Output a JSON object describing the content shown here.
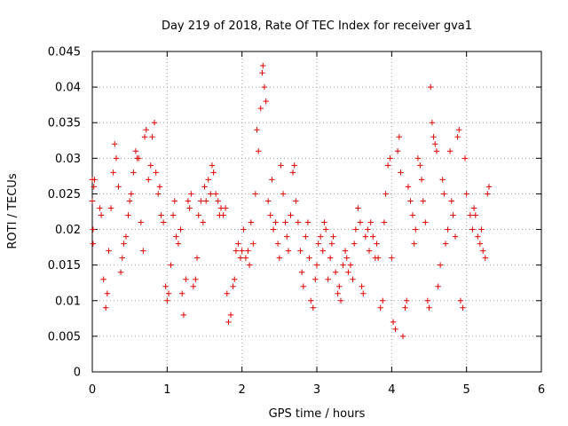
{
  "chart_data": {
    "type": "scatter",
    "title": "Day 219 of 2018, Rate Of TEC Index for receiver gva1",
    "xlabel": "GPS time / hours",
    "ylabel": "ROTI / TECUs",
    "xlim": [
      0,
      6
    ],
    "ylim": [
      0,
      0.045
    ],
    "x_ticks": [
      "0",
      "1",
      "2",
      "3",
      "4",
      "5",
      "6"
    ],
    "y_ticks": [
      "0",
      "0.005",
      "0.01",
      "0.015",
      "0.02",
      "0.025",
      "0.03",
      "0.035",
      "0.04",
      "0.045"
    ],
    "x_tick_values": [
      0,
      1,
      2,
      3,
      4,
      5,
      6
    ],
    "y_tick_values": [
      0,
      0.005,
      0.01,
      0.015,
      0.02,
      0.025,
      0.03,
      0.035,
      0.04,
      0.045
    ],
    "grid": true,
    "marker": "+",
    "marker_color": "#e00000",
    "series": [
      {
        "points": [
          [
            0.0,
            0.027
          ],
          [
            0.0,
            0.024
          ],
          [
            0.01,
            0.018
          ],
          [
            0.01,
            0.02
          ],
          [
            0.02,
            0.026
          ],
          [
            0.03,
            0.027
          ],
          [
            0.1,
            0.023
          ],
          [
            0.12,
            0.022
          ],
          [
            0.15,
            0.013
          ],
          [
            0.18,
            0.009
          ],
          [
            0.2,
            0.011
          ],
          [
            0.22,
            0.017
          ],
          [
            0.25,
            0.023
          ],
          [
            0.28,
            0.028
          ],
          [
            0.3,
            0.032
          ],
          [
            0.32,
            0.03
          ],
          [
            0.35,
            0.026
          ],
          [
            0.38,
            0.014
          ],
          [
            0.4,
            0.016
          ],
          [
            0.42,
            0.018
          ],
          [
            0.45,
            0.019
          ],
          [
            0.48,
            0.022
          ],
          [
            0.5,
            0.024
          ],
          [
            0.52,
            0.025
          ],
          [
            0.55,
            0.028
          ],
          [
            0.58,
            0.031
          ],
          [
            0.6,
            0.03
          ],
          [
            0.62,
            0.03
          ],
          [
            0.65,
            0.021
          ],
          [
            0.68,
            0.017
          ],
          [
            0.7,
            0.033
          ],
          [
            0.72,
            0.034
          ],
          [
            0.75,
            0.027
          ],
          [
            0.78,
            0.029
          ],
          [
            0.8,
            0.033
          ],
          [
            0.83,
            0.035
          ],
          [
            0.85,
            0.028
          ],
          [
            0.88,
            0.025
          ],
          [
            0.9,
            0.026
          ],
          [
            0.92,
            0.022
          ],
          [
            0.95,
            0.021
          ],
          [
            0.98,
            0.012
          ],
          [
            1.0,
            0.01
          ],
          [
            1.02,
            0.011
          ],
          [
            1.05,
            0.015
          ],
          [
            1.08,
            0.022
          ],
          [
            1.1,
            0.024
          ],
          [
            1.12,
            0.019
          ],
          [
            1.15,
            0.018
          ],
          [
            1.18,
            0.02
          ],
          [
            1.2,
            0.011
          ],
          [
            1.22,
            0.008
          ],
          [
            1.25,
            0.013
          ],
          [
            1.28,
            0.024
          ],
          [
            1.3,
            0.023
          ],
          [
            1.32,
            0.025
          ],
          [
            1.35,
            0.012
          ],
          [
            1.38,
            0.013
          ],
          [
            1.4,
            0.016
          ],
          [
            1.42,
            0.022
          ],
          [
            1.45,
            0.024
          ],
          [
            1.48,
            0.021
          ],
          [
            1.5,
            0.026
          ],
          [
            1.52,
            0.024
          ],
          [
            1.55,
            0.027
          ],
          [
            1.58,
            0.025
          ],
          [
            1.6,
            0.029
          ],
          [
            1.62,
            0.028
          ],
          [
            1.65,
            0.025
          ],
          [
            1.68,
            0.024
          ],
          [
            1.7,
            0.022
          ],
          [
            1.72,
            0.023
          ],
          [
            1.75,
            0.022
          ],
          [
            1.78,
            0.023
          ],
          [
            1.8,
            0.011
          ],
          [
            1.82,
            0.007
          ],
          [
            1.85,
            0.008
          ],
          [
            1.88,
            0.012
          ],
          [
            1.9,
            0.013
          ],
          [
            1.92,
            0.017
          ],
          [
            1.95,
            0.018
          ],
          [
            1.98,
            0.016
          ],
          [
            2.0,
            0.017
          ],
          [
            2.02,
            0.02
          ],
          [
            2.05,
            0.016
          ],
          [
            2.08,
            0.017
          ],
          [
            2.1,
            0.015
          ],
          [
            2.12,
            0.021
          ],
          [
            2.15,
            0.018
          ],
          [
            2.18,
            0.025
          ],
          [
            2.2,
            0.034
          ],
          [
            2.22,
            0.031
          ],
          [
            2.25,
            0.037
          ],
          [
            2.27,
            0.042
          ],
          [
            2.28,
            0.043
          ],
          [
            2.3,
            0.04
          ],
          [
            2.32,
            0.038
          ],
          [
            2.35,
            0.024
          ],
          [
            2.38,
            0.022
          ],
          [
            2.4,
            0.027
          ],
          [
            2.42,
            0.02
          ],
          [
            2.45,
            0.021
          ],
          [
            2.48,
            0.018
          ],
          [
            2.5,
            0.016
          ],
          [
            2.52,
            0.029
          ],
          [
            2.55,
            0.025
          ],
          [
            2.58,
            0.021
          ],
          [
            2.6,
            0.019
          ],
          [
            2.62,
            0.017
          ],
          [
            2.65,
            0.022
          ],
          [
            2.68,
            0.028
          ],
          [
            2.7,
            0.029
          ],
          [
            2.72,
            0.024
          ],
          [
            2.75,
            0.021
          ],
          [
            2.78,
            0.017
          ],
          [
            2.8,
            0.014
          ],
          [
            2.82,
            0.012
          ],
          [
            2.85,
            0.019
          ],
          [
            2.88,
            0.021
          ],
          [
            2.9,
            0.016
          ],
          [
            2.92,
            0.01
          ],
          [
            2.95,
            0.009
          ],
          [
            2.98,
            0.013
          ],
          [
            3.0,
            0.015
          ],
          [
            3.02,
            0.018
          ],
          [
            3.05,
            0.019
          ],
          [
            3.08,
            0.017
          ],
          [
            3.1,
            0.021
          ],
          [
            3.12,
            0.02
          ],
          [
            3.15,
            0.013
          ],
          [
            3.18,
            0.016
          ],
          [
            3.2,
            0.018
          ],
          [
            3.22,
            0.019
          ],
          [
            3.25,
            0.014
          ],
          [
            3.28,
            0.011
          ],
          [
            3.3,
            0.012
          ],
          [
            3.32,
            0.01
          ],
          [
            3.35,
            0.015
          ],
          [
            3.38,
            0.017
          ],
          [
            3.4,
            0.016
          ],
          [
            3.42,
            0.014
          ],
          [
            3.45,
            0.015
          ],
          [
            3.48,
            0.013
          ],
          [
            3.5,
            0.018
          ],
          [
            3.52,
            0.02
          ],
          [
            3.55,
            0.023
          ],
          [
            3.58,
            0.021
          ],
          [
            3.6,
            0.012
          ],
          [
            3.62,
            0.011
          ],
          [
            3.65,
            0.019
          ],
          [
            3.68,
            0.02
          ],
          [
            3.7,
            0.017
          ],
          [
            3.72,
            0.021
          ],
          [
            3.75,
            0.019
          ],
          [
            3.78,
            0.016
          ],
          [
            3.8,
            0.018
          ],
          [
            3.82,
            0.016
          ],
          [
            3.85,
            0.009
          ],
          [
            3.88,
            0.01
          ],
          [
            3.9,
            0.021
          ],
          [
            3.92,
            0.025
          ],
          [
            3.95,
            0.029
          ],
          [
            3.98,
            0.03
          ],
          [
            4.0,
            0.016
          ],
          [
            4.02,
            0.007
          ],
          [
            4.05,
            0.006
          ],
          [
            4.08,
            0.031
          ],
          [
            4.1,
            0.033
          ],
          [
            4.12,
            0.028
          ],
          [
            4.15,
            0.005
          ],
          [
            4.18,
            0.009
          ],
          [
            4.2,
            0.01
          ],
          [
            4.22,
            0.026
          ],
          [
            4.25,
            0.024
          ],
          [
            4.28,
            0.022
          ],
          [
            4.3,
            0.018
          ],
          [
            4.32,
            0.02
          ],
          [
            4.35,
            0.03
          ],
          [
            4.38,
            0.029
          ],
          [
            4.4,
            0.027
          ],
          [
            4.42,
            0.024
          ],
          [
            4.45,
            0.021
          ],
          [
            4.48,
            0.01
          ],
          [
            4.5,
            0.009
          ],
          [
            4.52,
            0.04
          ],
          [
            4.54,
            0.035
          ],
          [
            4.56,
            0.033
          ],
          [
            4.58,
            0.032
          ],
          [
            4.6,
            0.031
          ],
          [
            4.62,
            0.012
          ],
          [
            4.65,
            0.015
          ],
          [
            4.68,
            0.027
          ],
          [
            4.7,
            0.025
          ],
          [
            4.72,
            0.018
          ],
          [
            4.75,
            0.02
          ],
          [
            4.78,
            0.031
          ],
          [
            4.8,
            0.024
          ],
          [
            4.82,
            0.022
          ],
          [
            4.85,
            0.019
          ],
          [
            4.88,
            0.033
          ],
          [
            4.9,
            0.034
          ],
          [
            4.92,
            0.01
          ],
          [
            4.95,
            0.009
          ],
          [
            4.98,
            0.03
          ],
          [
            5.0,
            0.025
          ],
          [
            5.05,
            0.022
          ],
          [
            5.08,
            0.02
          ],
          [
            5.1,
            0.023
          ],
          [
            5.12,
            0.022
          ],
          [
            5.15,
            0.019
          ],
          [
            5.18,
            0.018
          ],
          [
            5.2,
            0.02
          ],
          [
            5.22,
            0.017
          ],
          [
            5.25,
            0.016
          ],
          [
            5.28,
            0.025
          ],
          [
            5.3,
            0.026
          ]
        ]
      }
    ]
  }
}
